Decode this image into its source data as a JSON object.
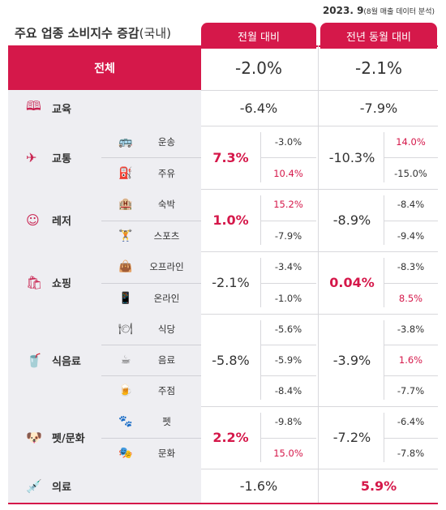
{
  "header": {
    "date": "2023. 9",
    "date_note": "(8월 매출 데이터 분석)",
    "title": "주요 업종 소비지수 증감",
    "title_note": "(국내)",
    "col_mom": "전월 대비",
    "col_yoy": "전년 동월 대비"
  },
  "total": {
    "label": "전체",
    "mom": "-2.0%",
    "yoy": "-2.1%"
  },
  "categories": [
    {
      "key": "edu",
      "label": "교육",
      "icon": "book-icon",
      "mom": "-6.4%",
      "yoy": "-7.9%",
      "subs": []
    },
    {
      "key": "transport",
      "label": "교통",
      "icon": "airplane-icon",
      "mom": "7.3%",
      "mom_red": true,
      "yoy": "-10.3%",
      "subs": [
        {
          "label": "운송",
          "icon": "bus-icon",
          "mom": "-3.0%",
          "yoy": "14.0%",
          "yoy_red": true
        },
        {
          "label": "주유",
          "icon": "fuel-pump-icon",
          "mom": "10.4%",
          "mom_red": true,
          "yoy": "-15.0%"
        }
      ]
    },
    {
      "key": "leisure",
      "label": "레저",
      "icon": "smile-icon",
      "mom": "1.0%",
      "mom_red": true,
      "yoy": "-8.9%",
      "subs": [
        {
          "label": "숙박",
          "icon": "hotel-icon",
          "mom": "15.2%",
          "mom_red": true,
          "yoy": "-8.4%"
        },
        {
          "label": "스포츠",
          "icon": "dumbbell-icon",
          "mom": "-7.9%",
          "yoy": "-9.4%"
        }
      ]
    },
    {
      "key": "shopping",
      "label": "쇼핑",
      "icon": "shopping-icon",
      "mom": "-2.1%",
      "yoy": "0.04%",
      "yoy_red": true,
      "subs": [
        {
          "label": "오프라인",
          "icon": "shopping-bag-icon",
          "mom": "-3.4%",
          "yoy": "-8.3%"
        },
        {
          "label": "온라인",
          "icon": "mobile-shop-icon",
          "mom": "-1.0%",
          "yoy": "8.5%",
          "yoy_red": true
        }
      ]
    },
    {
      "key": "food",
      "label": "식음료",
      "icon": "food-drink-icon",
      "mom": "-5.8%",
      "yoy": "-3.9%",
      "subs": [
        {
          "label": "식당",
          "icon": "dish-icon",
          "mom": "-5.6%",
          "yoy": "-3.8%"
        },
        {
          "label": "음료",
          "icon": "coffee-cup-icon",
          "mom": "-5.9%",
          "yoy": "1.6%",
          "yoy_red": true
        },
        {
          "label": "주점",
          "icon": "beer-icon",
          "mom": "-8.4%",
          "yoy": "-7.7%"
        }
      ]
    },
    {
      "key": "pet",
      "label": "펫/문화",
      "icon": "dog-icon",
      "mom": "2.2%",
      "mom_red": true,
      "yoy": "-7.2%",
      "subs": [
        {
          "label": "펫",
          "icon": "paw-icon",
          "mom": "-9.8%",
          "yoy": "-6.4%"
        },
        {
          "label": "문화",
          "icon": "culture-icon",
          "mom": "15.0%",
          "mom_red": true,
          "yoy": "-7.8%"
        }
      ]
    },
    {
      "key": "medical",
      "label": "의료",
      "icon": "syringe-icon",
      "mom": "-1.6%",
      "yoy": "5.9%",
      "yoy_red": true,
      "subs": []
    }
  ]
}
